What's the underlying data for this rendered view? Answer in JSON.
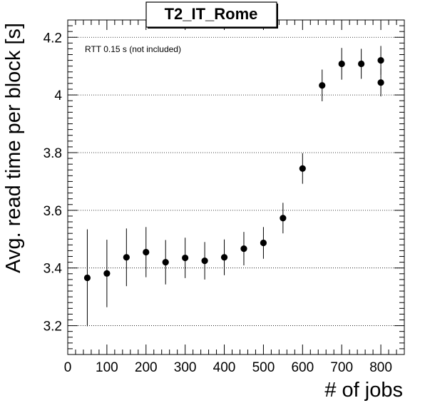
{
  "chart_data": {
    "type": "scatter",
    "title": "T2_IT_Rome",
    "xlabel": "# of jobs",
    "ylabel": "Avg. read time per block [s]",
    "annotation": "RTT 0.15 s (not included)",
    "xlim": [
      0,
      860
    ],
    "ylim": [
      3.1,
      4.26
    ],
    "x_ticks": [
      "0",
      "100",
      "200",
      "300",
      "400",
      "500",
      "600",
      "700",
      "800"
    ],
    "y_ticks": [
      "3.2",
      "3.4",
      "3.6",
      "3.8",
      "4",
      "4.2"
    ],
    "grid": "horizontal dotted",
    "legend": "none",
    "series": [
      {
        "points": [
          {
            "x": 50,
            "y": 3.366,
            "err": 0.168
          },
          {
            "x": 100,
            "y": 3.381,
            "err": 0.117
          },
          {
            "x": 150,
            "y": 3.437,
            "err": 0.1
          },
          {
            "x": 200,
            "y": 3.455,
            "err": 0.087
          },
          {
            "x": 250,
            "y": 3.42,
            "err": 0.077
          },
          {
            "x": 300,
            "y": 3.435,
            "err": 0.07
          },
          {
            "x": 350,
            "y": 3.425,
            "err": 0.065
          },
          {
            "x": 400,
            "y": 3.437,
            "err": 0.062
          },
          {
            "x": 450,
            "y": 3.467,
            "err": 0.058
          },
          {
            "x": 500,
            "y": 3.487,
            "err": 0.055
          },
          {
            "x": 550,
            "y": 3.573,
            "err": 0.053
          },
          {
            "x": 600,
            "y": 3.745,
            "err": 0.053
          },
          {
            "x": 650,
            "y": 4.033,
            "err": 0.055
          },
          {
            "x": 700,
            "y": 4.108,
            "err": 0.055
          },
          {
            "x": 750,
            "y": 4.108,
            "err": 0.052
          },
          {
            "x": 800,
            "y": 4.12,
            "err": 0.05
          },
          {
            "x": 800,
            "y": 4.043,
            "err": 0.048
          }
        ]
      }
    ]
  }
}
